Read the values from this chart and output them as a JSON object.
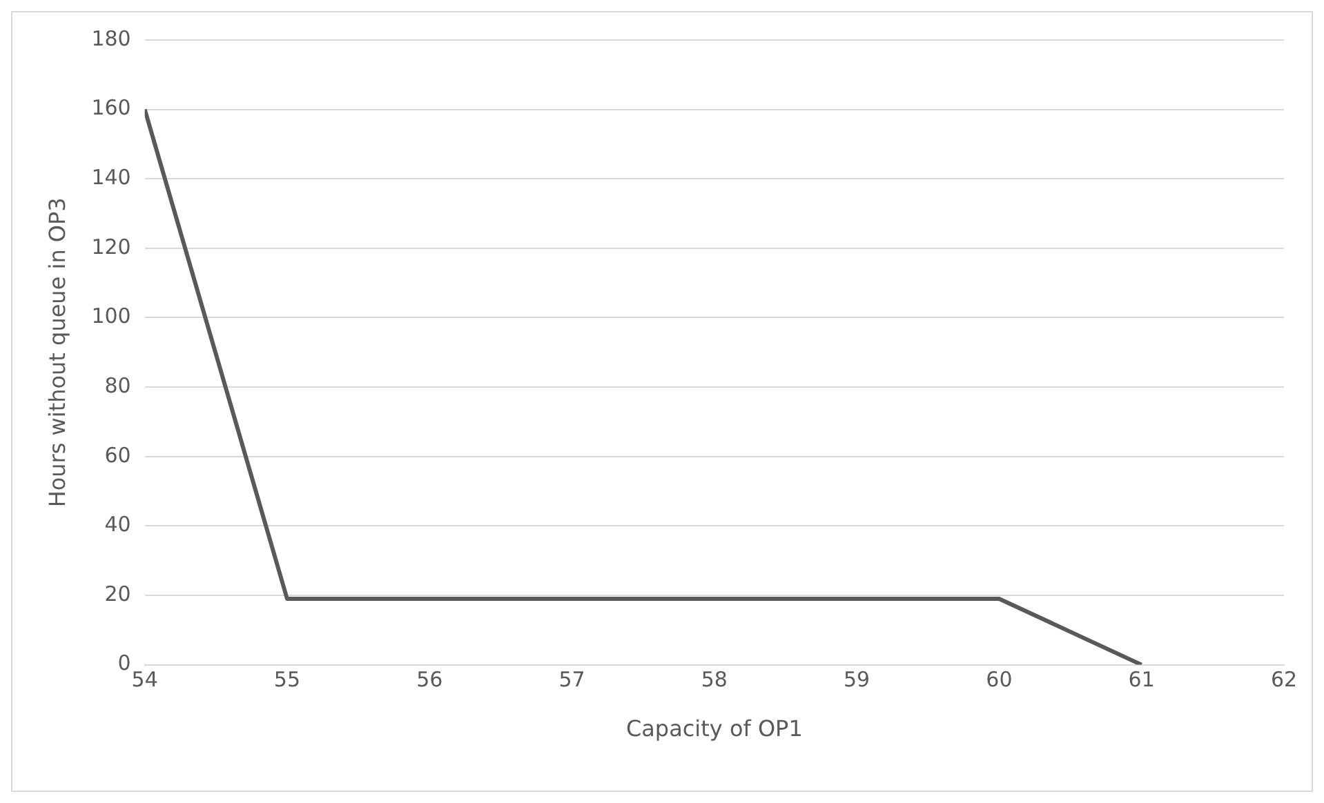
{
  "chart_data": {
    "type": "line",
    "xlabel": "Capacity of OP1",
    "ylabel": "Hours without queue in OP3",
    "x": [
      54,
      55,
      56,
      57,
      58,
      59,
      60,
      61
    ],
    "series": [
      {
        "color": "#595959",
        "values": [
          160,
          19,
          19,
          19,
          19,
          19,
          19,
          0
        ]
      }
    ],
    "xlim": [
      54,
      62
    ],
    "xticks": [
      54,
      55,
      56,
      57,
      58,
      59,
      60,
      61,
      62
    ],
    "ylim": [
      0,
      180
    ],
    "yticks": [
      0,
      20,
      40,
      60,
      80,
      100,
      120,
      140,
      160,
      180
    ],
    "grid": "y",
    "legend": false,
    "marker": "none",
    "line_style": "solid"
  }
}
